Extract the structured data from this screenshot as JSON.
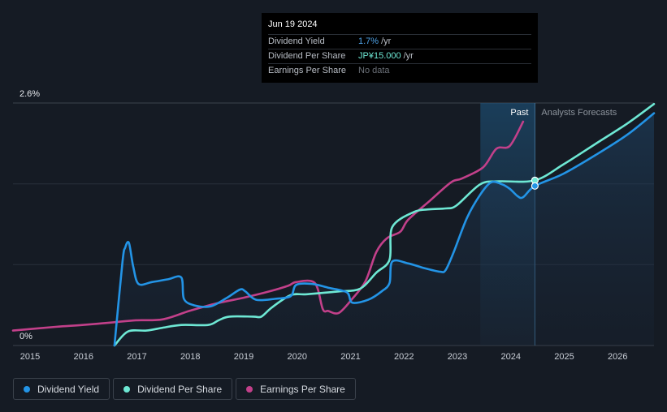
{
  "tooltip": {
    "date": "Jun 19 2024",
    "rows": [
      {
        "label": "Dividend Yield",
        "value": "1.7%",
        "unit": "/yr"
      },
      {
        "label": "Dividend Per Share",
        "value": "JP¥15.000",
        "unit": "/yr"
      },
      {
        "label": "Earnings Per Share",
        "value": "No data",
        "unit": ""
      }
    ]
  },
  "legend": [
    {
      "label": "Dividend Yield",
      "color": "#2394e6"
    },
    {
      "label": "Dividend Per Share",
      "color": "#6ee8d4"
    },
    {
      "label": "Earnings Per Share",
      "color": "#c2408a"
    }
  ],
  "chart_data": {
    "type": "line",
    "y_top_label": "2.6%",
    "y_bottom_label": "0%",
    "ylim": [
      0,
      2.6
    ],
    "xlim": [
      2014.7,
      2026.7
    ],
    "x_ticks": [
      "2015",
      "2016",
      "2017",
      "2018",
      "2019",
      "2020",
      "2021",
      "2022",
      "2023",
      "2024",
      "2025",
      "2026"
    ],
    "past_label": "Past",
    "forecast_label": "Analysts Forecasts",
    "past_region_start": 2023.45,
    "today": 2024.47,
    "colors": {
      "yield": "#2394e6",
      "dps": "#6ee8d4",
      "eps": "#c2408a"
    },
    "series": [
      {
        "name": "Dividend Yield",
        "key": "yield",
        "points": [
          [
            2016.6,
            0
          ],
          [
            2016.75,
            0.9
          ],
          [
            2016.8,
            1.05
          ],
          [
            2016.87,
            1.1
          ],
          [
            2016.95,
            0.85
          ],
          [
            2017.05,
            0.66
          ],
          [
            2017.3,
            0.68
          ],
          [
            2017.6,
            0.71
          ],
          [
            2017.85,
            0.73
          ],
          [
            2017.9,
            0.5
          ],
          [
            2018.1,
            0.43
          ],
          [
            2018.4,
            0.42
          ],
          [
            2018.7,
            0.51
          ],
          [
            2018.95,
            0.6
          ],
          [
            2019.05,
            0.58
          ],
          [
            2019.25,
            0.49
          ],
          [
            2019.6,
            0.5
          ],
          [
            2019.9,
            0.53
          ],
          [
            2020.0,
            0.65
          ],
          [
            2020.3,
            0.66
          ],
          [
            2020.6,
            0.62
          ],
          [
            2020.95,
            0.57
          ],
          [
            2021.05,
            0.46
          ],
          [
            2021.35,
            0.49
          ],
          [
            2021.6,
            0.58
          ],
          [
            2021.75,
            0.67
          ],
          [
            2021.8,
            0.9
          ],
          [
            2022.1,
            0.88
          ],
          [
            2022.4,
            0.83
          ],
          [
            2022.7,
            0.79
          ],
          [
            2022.8,
            0.81
          ],
          [
            2022.95,
            1.0
          ],
          [
            2023.2,
            1.37
          ],
          [
            2023.45,
            1.62
          ],
          [
            2023.65,
            1.75
          ],
          [
            2023.85,
            1.73
          ],
          [
            2024.0,
            1.68
          ],
          [
            2024.15,
            1.6
          ],
          [
            2024.25,
            1.59
          ],
          [
            2024.47,
            1.71
          ],
          [
            2025.0,
            1.84
          ],
          [
            2025.6,
            2.04
          ],
          [
            2026.2,
            2.26
          ],
          [
            2026.7,
            2.49
          ]
        ]
      },
      {
        "name": "Dividend Per Share",
        "key": "dps",
        "points": [
          [
            2016.6,
            0
          ],
          [
            2016.85,
            0.15
          ],
          [
            2017.2,
            0.16
          ],
          [
            2017.5,
            0.19
          ],
          [
            2017.85,
            0.22
          ],
          [
            2018.35,
            0.22
          ],
          [
            2018.55,
            0.27
          ],
          [
            2018.75,
            0.31
          ],
          [
            2019.2,
            0.31
          ],
          [
            2019.35,
            0.31
          ],
          [
            2019.55,
            0.41
          ],
          [
            2019.9,
            0.54
          ],
          [
            2020.2,
            0.55
          ],
          [
            2020.8,
            0.58
          ],
          [
            2021.2,
            0.61
          ],
          [
            2021.5,
            0.78
          ],
          [
            2021.75,
            0.92
          ],
          [
            2021.8,
            1.27
          ],
          [
            2022.2,
            1.43
          ],
          [
            2022.5,
            1.46
          ],
          [
            2022.8,
            1.47
          ],
          [
            2023.0,
            1.5
          ],
          [
            2023.45,
            1.73
          ],
          [
            2023.8,
            1.76
          ],
          [
            2024.47,
            1.77
          ],
          [
            2025.0,
            1.94
          ],
          [
            2025.6,
            2.16
          ],
          [
            2026.2,
            2.38
          ],
          [
            2026.7,
            2.59
          ]
        ]
      },
      {
        "name": "Earnings Per Share",
        "key": "eps",
        "points": [
          [
            2014.7,
            0.16
          ],
          [
            2015.5,
            0.2
          ],
          [
            2016.0,
            0.22
          ],
          [
            2016.6,
            0.25
          ],
          [
            2017.0,
            0.27
          ],
          [
            2017.5,
            0.28
          ],
          [
            2018.0,
            0.37
          ],
          [
            2018.5,
            0.45
          ],
          [
            2019.0,
            0.51
          ],
          [
            2019.5,
            0.58
          ],
          [
            2019.85,
            0.64
          ],
          [
            2020.0,
            0.68
          ],
          [
            2020.35,
            0.67
          ],
          [
            2020.5,
            0.39
          ],
          [
            2020.6,
            0.37
          ],
          [
            2020.8,
            0.35
          ],
          [
            2021.05,
            0.5
          ],
          [
            2021.3,
            0.69
          ],
          [
            2021.5,
            1.0
          ],
          [
            2021.7,
            1.15
          ],
          [
            2021.95,
            1.22
          ],
          [
            2022.1,
            1.35
          ],
          [
            2022.5,
            1.55
          ],
          [
            2022.9,
            1.75
          ],
          [
            2023.1,
            1.79
          ],
          [
            2023.5,
            1.91
          ],
          [
            2023.75,
            2.11
          ],
          [
            2024.0,
            2.14
          ],
          [
            2024.25,
            2.4
          ]
        ]
      }
    ]
  }
}
